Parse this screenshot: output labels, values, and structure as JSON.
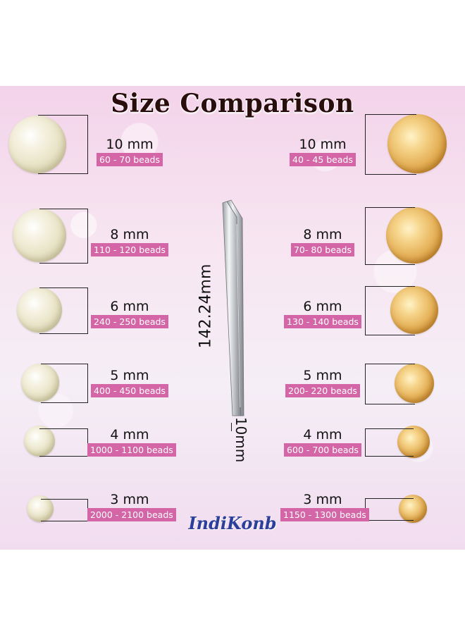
{
  "title": "Size Comparison",
  "brand": "IndiKonb",
  "tweezer": {
    "length_label": "142.24mm",
    "tip_label": "10mm"
  },
  "pearl_beads": [
    {
      "size": "10 mm",
      "count": "60 - 70 beads"
    },
    {
      "size": "8 mm",
      "count": "110 - 120 beads"
    },
    {
      "size": "6 mm",
      "count": "240 - 250 beads"
    },
    {
      "size": "5 mm",
      "count": "400 - 450 beads"
    },
    {
      "size": "4 mm",
      "count": "1000 - 1100 beads"
    },
    {
      "size": "3 mm",
      "count": "2000 - 2100 beads"
    }
  ],
  "gold_beads": [
    {
      "size": "10 mm",
      "count": "40 - 45 beads"
    },
    {
      "size": "8 mm",
      "count": "70- 80 beads"
    },
    {
      "size": "6 mm",
      "count": "130 - 140 beads"
    },
    {
      "size": "5 mm",
      "count": "200- 220 beads"
    },
    {
      "size": "4 mm",
      "count": "600 - 700 beads"
    },
    {
      "size": "3 mm",
      "count": "1150 - 1300 beads"
    }
  ],
  "colors": {
    "badge": "#d466a8",
    "brand": "#2c3f9a",
    "title": "#2a0e0e"
  }
}
